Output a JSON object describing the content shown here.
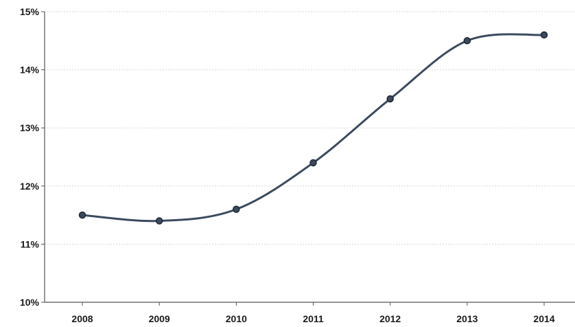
{
  "chart_data": {
    "type": "line",
    "title": "",
    "xlabel": "",
    "ylabel": "",
    "categories": [
      "2008",
      "2009",
      "2010",
      "2011",
      "2012",
      "2013",
      "2014"
    ],
    "series": [
      {
        "values": [
          11.5,
          11.4,
          11.6,
          12.4,
          13.5,
          14.5,
          14.6
        ]
      }
    ],
    "ylim": [
      10,
      15
    ],
    "yticks": [
      10,
      11,
      12,
      13,
      14,
      15
    ],
    "ytick_labels": [
      "10%",
      "11%",
      "12%",
      "13%",
      "14%",
      "15%"
    ],
    "grid": true,
    "smooth": true,
    "legend": "none",
    "colors": {
      "line": "#3b4a5e",
      "marker_fill": "#3b4a5e",
      "marker_stroke": "#1e2633",
      "grid": "#d9d9d9",
      "axis": "#555555"
    }
  }
}
